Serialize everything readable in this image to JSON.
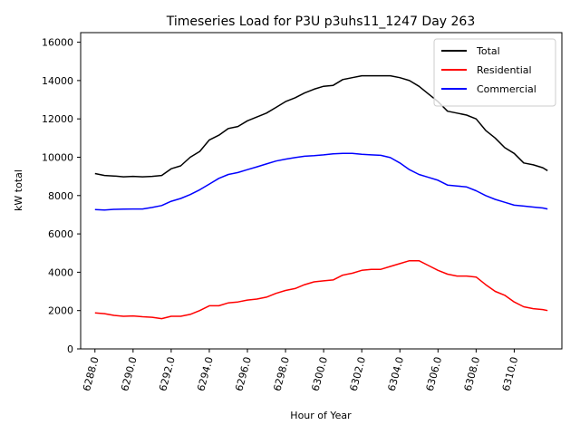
{
  "chart_data": {
    "type": "line",
    "title": "Timeseries Load for P3U p3uhs11_1247  Day 263",
    "xlabel": "Hour of Year",
    "ylabel": "kW total",
    "xlim": [
      6287.25,
      6312.5
    ],
    "ylim": [
      0,
      16500
    ],
    "xticks": [
      6288,
      6290,
      6292,
      6294,
      6296,
      6298,
      6300,
      6302,
      6304,
      6306,
      6308,
      6310
    ],
    "xtick_labels": [
      "6288.0",
      "6290.0",
      "6292.0",
      "6294.0",
      "6296.0",
      "6298.0",
      "6300.0",
      "6302.0",
      "6304.0",
      "6306.0",
      "6308.0",
      "6310.0"
    ],
    "yticks": [
      0,
      2000,
      4000,
      6000,
      8000,
      10000,
      12000,
      14000,
      16000
    ],
    "ytick_labels": [
      "0",
      "2000",
      "4000",
      "6000",
      "8000",
      "10000",
      "12000",
      "14000",
      "16000"
    ],
    "legend_position": "top-right",
    "x": [
      6288.0,
      6288.5,
      6289.0,
      6289.5,
      6290.0,
      6290.5,
      6291.0,
      6291.5,
      6292.0,
      6292.5,
      6293.0,
      6293.5,
      6294.0,
      6294.5,
      6295.0,
      6295.5,
      6296.0,
      6296.5,
      6297.0,
      6297.5,
      6298.0,
      6298.5,
      6299.0,
      6299.5,
      6300.0,
      6300.5,
      6301.0,
      6301.5,
      6302.0,
      6302.5,
      6303.0,
      6303.5,
      6304.0,
      6304.5,
      6305.0,
      6305.5,
      6306.0,
      6306.5,
      6307.0,
      6307.5,
      6308.0,
      6308.5,
      6309.0,
      6309.5,
      6310.0,
      6310.5,
      6311.0,
      6311.5,
      6311.75
    ],
    "series": [
      {
        "name": "Total",
        "color": "#000000",
        "values": [
          9150,
          9050,
          9020,
          8980,
          9000,
          8980,
          9000,
          9050,
          9400,
          9550,
          10000,
          10300,
          10900,
          11150,
          11500,
          11600,
          11900,
          12100,
          12300,
          12600,
          12900,
          13100,
          13350,
          13550,
          13700,
          13750,
          14050,
          14150,
          14250,
          14250,
          14250,
          14250,
          14150,
          14000,
          13700,
          13300,
          12900,
          12400,
          12300,
          12200,
          12000,
          11400,
          11000,
          10500,
          10200,
          9700,
          9600,
          9450,
          9300
        ]
      },
      {
        "name": "Residential",
        "color": "#ff0000",
        "values": [
          1880,
          1840,
          1750,
          1700,
          1720,
          1680,
          1650,
          1580,
          1700,
          1700,
          1800,
          2000,
          2250,
          2250,
          2400,
          2450,
          2550,
          2600,
          2700,
          2900,
          3050,
          3150,
          3350,
          3500,
          3550,
          3600,
          3850,
          3950,
          4100,
          4150,
          4150,
          4300,
          4450,
          4600,
          4600,
          4350,
          4100,
          3900,
          3800,
          3800,
          3750,
          3350,
          3000,
          2800,
          2450,
          2200,
          2100,
          2050,
          2000
        ]
      },
      {
        "name": "Commercial",
        "color": "#0000ff",
        "values": [
          7270,
          7250,
          7280,
          7290,
          7300,
          7300,
          7380,
          7480,
          7700,
          7850,
          8050,
          8300,
          8600,
          8900,
          9100,
          9200,
          9350,
          9500,
          9650,
          9800,
          9900,
          9980,
          10050,
          10080,
          10120,
          10180,
          10200,
          10200,
          10150,
          10120,
          10100,
          9980,
          9700,
          9350,
          9100,
          8950,
          8800,
          8550,
          8500,
          8450,
          8250,
          8000,
          7800,
          7650,
          7500,
          7450,
          7400,
          7350,
          7300
        ]
      }
    ]
  }
}
